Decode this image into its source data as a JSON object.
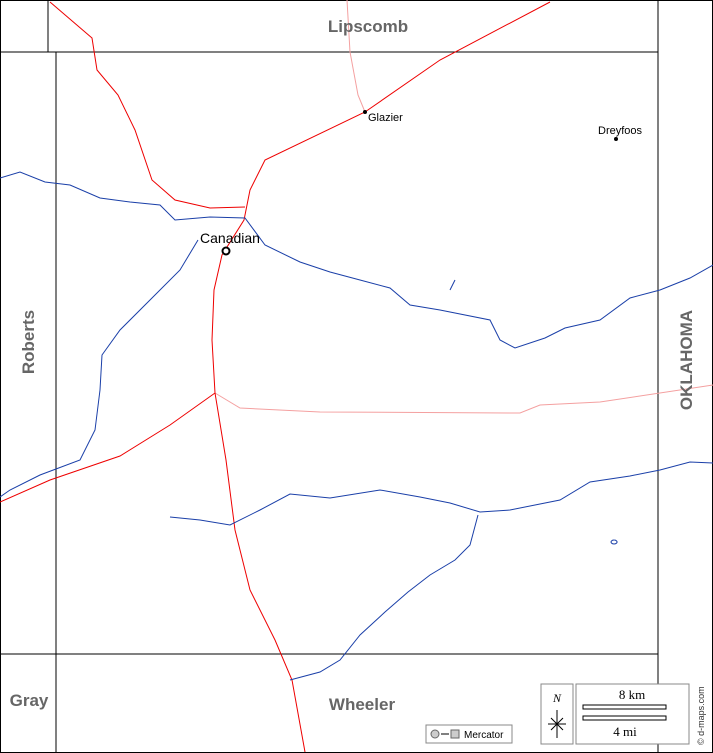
{
  "labels": {
    "north": "Lipscomb",
    "west": "Roberts",
    "east": "OKLAHOMA",
    "southwest": "Gray",
    "south": "Wheeler"
  },
  "towns": [
    "Glazier",
    "Dreyfoos",
    "Canadian"
  ],
  "north_arrow": "N",
  "scale": {
    "km": "8 km",
    "mi": "4 mi"
  },
  "projection": "Mercator",
  "credit": "© d-maps.com"
}
